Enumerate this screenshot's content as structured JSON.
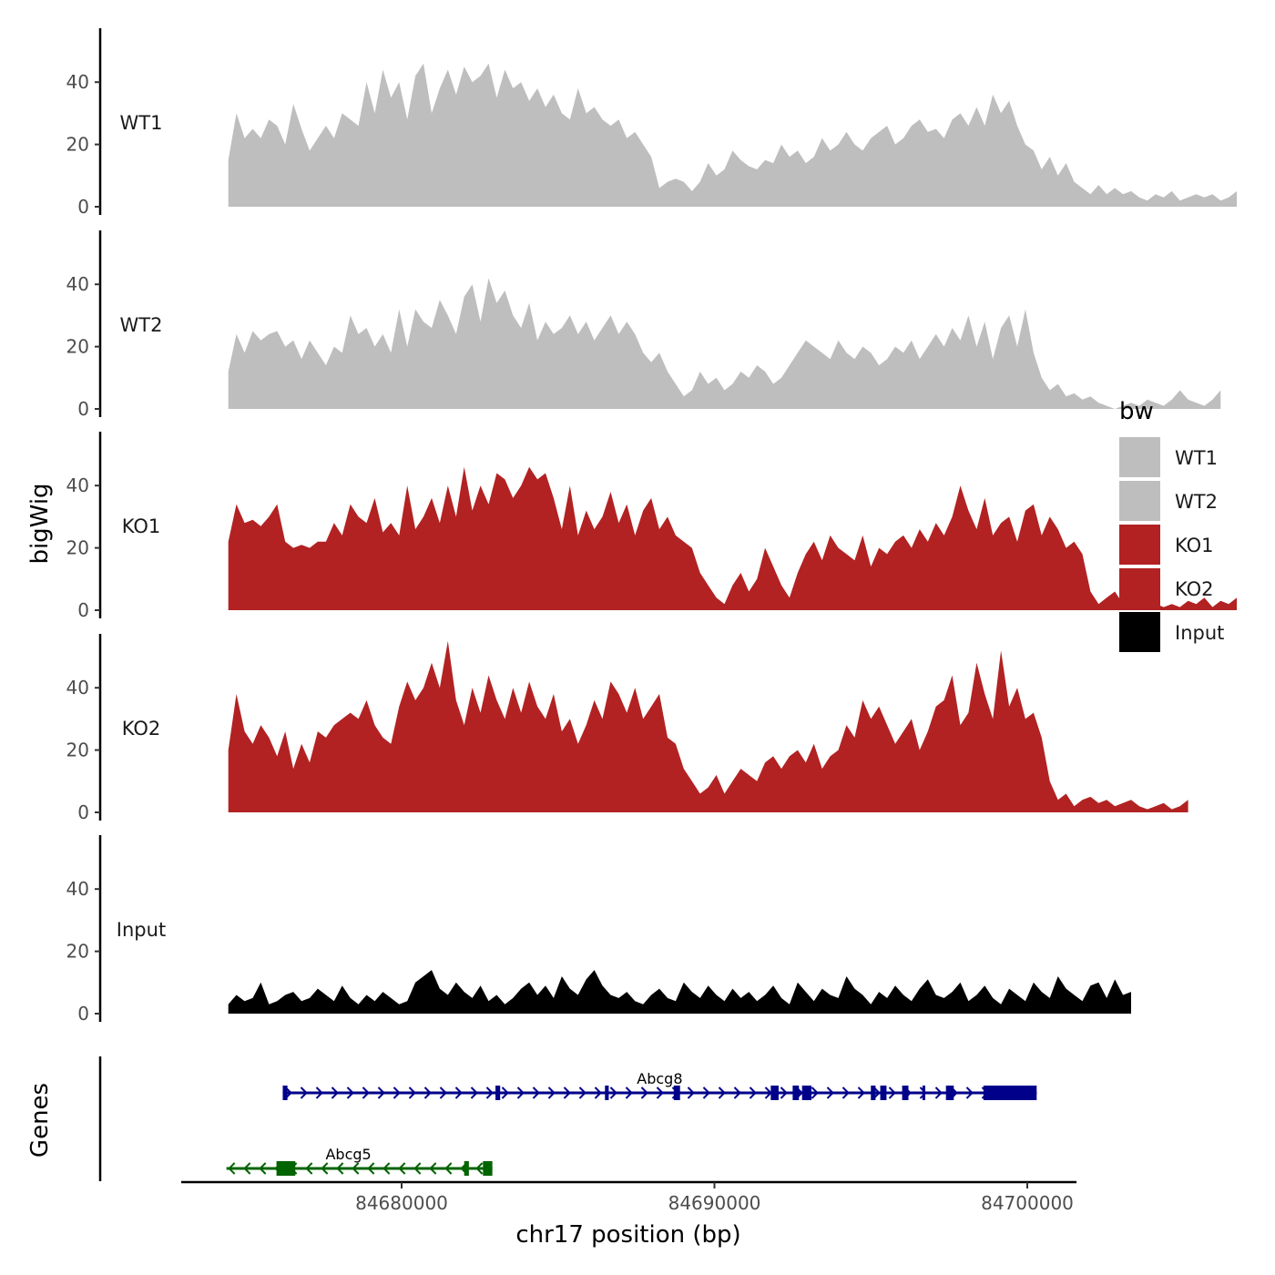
{
  "chart_data": {
    "type": "area",
    "chromosome": "chr17",
    "xlabel": "chr17 position (bp)",
    "ylabel_signal": "bigWig",
    "ylabel_genes": "Genes",
    "xlim": [
      84672600,
      84701600
    ],
    "x_ticks": [
      84680000,
      84690000,
      84700000
    ],
    "x_tick_labels": [
      "84680000",
      "84690000",
      "84700000"
    ],
    "ylim": [
      0,
      57
    ],
    "y_ticks": [
      0,
      20,
      40
    ],
    "y_tick_labels": [
      "0",
      "20",
      "40"
    ],
    "legend": {
      "title": "bw",
      "position": "right",
      "entries": [
        {
          "label": "WT1",
          "color": "#bebebe"
        },
        {
          "label": "WT2",
          "color": "#bebebe"
        },
        {
          "label": "KO1",
          "color": "#b22222"
        },
        {
          "label": "KO2",
          "color": "#b22222"
        },
        {
          "label": "Input",
          "color": "#000000"
        }
      ]
    },
    "series_x_start": 84674460,
    "series_x_step": 260,
    "series": [
      {
        "name": "WT1",
        "color": "#bebebe",
        "values": [
          15,
          30,
          22,
          25,
          22,
          28,
          26,
          20,
          33,
          25,
          18,
          22,
          26,
          22,
          30,
          28,
          26,
          40,
          30,
          44,
          35,
          40,
          28,
          42,
          46,
          30,
          38,
          44,
          36,
          45,
          40,
          42,
          46,
          35,
          44,
          38,
          40,
          34,
          38,
          32,
          36,
          30,
          28,
          38,
          30,
          32,
          28,
          26,
          28,
          22,
          24,
          20,
          16,
          6,
          8,
          9,
          8,
          5,
          8,
          14,
          10,
          12,
          18,
          15,
          13,
          12,
          15,
          14,
          20,
          16,
          18,
          14,
          16,
          22,
          18,
          20,
          24,
          20,
          18,
          22,
          24,
          26,
          20,
          22,
          26,
          28,
          24,
          25,
          22,
          28,
          30,
          26,
          32,
          26,
          36,
          30,
          34,
          26,
          20,
          18,
          12,
          16,
          10,
          14,
          8,
          6,
          4,
          7,
          4,
          6,
          4,
          5,
          3,
          2,
          4,
          3,
          5,
          2,
          3,
          4,
          3,
          4,
          2,
          3,
          5
        ]
      },
      {
        "name": "WT2",
        "color": "#bebebe",
        "values": [
          12,
          24,
          18,
          25,
          22,
          24,
          25,
          20,
          22,
          16,
          22,
          18,
          14,
          20,
          18,
          30,
          24,
          26,
          20,
          24,
          18,
          32,
          20,
          32,
          28,
          26,
          35,
          30,
          24,
          36,
          40,
          28,
          42,
          34,
          38,
          30,
          26,
          34,
          22,
          28,
          24,
          26,
          30,
          24,
          28,
          22,
          26,
          30,
          24,
          28,
          24,
          18,
          15,
          18,
          12,
          8,
          4,
          6,
          12,
          8,
          10,
          6,
          8,
          12,
          10,
          14,
          12,
          8,
          10,
          14,
          18,
          22,
          20,
          18,
          16,
          22,
          18,
          16,
          20,
          18,
          14,
          16,
          20,
          18,
          22,
          16,
          20,
          24,
          20,
          26,
          22,
          30,
          20,
          28,
          16,
          26,
          30,
          20,
          32,
          18,
          10,
          6,
          8,
          4,
          5,
          3,
          4,
          2,
          1,
          0,
          1,
          2,
          1,
          3,
          2,
          1,
          3,
          6,
          3,
          2,
          1,
          3,
          6
        ]
      },
      {
        "name": "KO1",
        "color": "#b22222",
        "values": [
          22,
          34,
          28,
          29,
          27,
          30,
          34,
          22,
          20,
          21,
          20,
          22,
          22,
          28,
          24,
          34,
          30,
          28,
          36,
          25,
          28,
          24,
          40,
          26,
          30,
          36,
          28,
          40,
          30,
          46,
          32,
          40,
          34,
          44,
          42,
          36,
          40,
          46,
          42,
          44,
          36,
          26,
          40,
          24,
          32,
          26,
          30,
          38,
          28,
          34,
          24,
          32,
          36,
          26,
          30,
          24,
          22,
          20,
          12,
          8,
          4,
          2,
          8,
          12,
          6,
          10,
          20,
          14,
          8,
          4,
          12,
          18,
          22,
          16,
          24,
          20,
          18,
          16,
          24,
          14,
          20,
          18,
          22,
          24,
          20,
          26,
          22,
          28,
          24,
          30,
          40,
          32,
          26,
          36,
          24,
          28,
          30,
          22,
          32,
          34,
          24,
          30,
          26,
          20,
          22,
          18,
          6,
          2,
          4,
          6,
          2,
          3,
          1,
          4,
          2,
          1,
          2,
          1,
          3,
          2,
          4,
          1,
          3,
          2,
          4
        ]
      },
      {
        "name": "KO2",
        "color": "#b22222",
        "values": [
          20,
          38,
          26,
          22,
          28,
          24,
          18,
          26,
          14,
          22,
          16,
          26,
          24,
          28,
          30,
          32,
          30,
          36,
          28,
          24,
          22,
          34,
          42,
          36,
          40,
          48,
          40,
          55,
          36,
          28,
          40,
          32,
          44,
          36,
          30,
          40,
          32,
          42,
          34,
          30,
          38,
          26,
          30,
          22,
          28,
          36,
          30,
          42,
          38,
          32,
          40,
          30,
          34,
          38,
          24,
          22,
          14,
          10,
          6,
          8,
          12,
          6,
          10,
          14,
          12,
          10,
          16,
          18,
          14,
          18,
          20,
          16,
          22,
          14,
          18,
          20,
          28,
          24,
          36,
          30,
          34,
          28,
          22,
          26,
          30,
          20,
          26,
          34,
          36,
          44,
          28,
          32,
          48,
          38,
          30,
          52,
          34,
          40,
          30,
          32,
          24,
          10,
          4,
          6,
          2,
          4,
          5,
          3,
          4,
          2,
          3,
          4,
          2,
          1,
          2,
          3,
          1,
          2,
          4
        ]
      },
      {
        "name": "Input",
        "color": "#000000",
        "values": [
          3,
          6,
          4,
          5,
          10,
          3,
          4,
          6,
          7,
          4,
          5,
          8,
          6,
          4,
          9,
          5,
          3,
          6,
          4,
          7,
          5,
          3,
          4,
          10,
          12,
          14,
          8,
          6,
          10,
          7,
          5,
          9,
          4,
          6,
          3,
          5,
          8,
          10,
          6,
          9,
          5,
          12,
          8,
          6,
          11,
          14,
          9,
          6,
          5,
          7,
          4,
          3,
          6,
          8,
          5,
          4,
          10,
          7,
          5,
          9,
          6,
          4,
          8,
          5,
          7,
          4,
          6,
          9,
          5,
          3,
          10,
          7,
          4,
          8,
          6,
          5,
          12,
          8,
          6,
          3,
          7,
          5,
          9,
          6,
          4,
          8,
          11,
          6,
          5,
          7,
          10,
          4,
          6,
          9,
          5,
          3,
          8,
          6,
          4,
          10,
          7,
          5,
          12,
          8,
          6,
          4,
          9,
          10,
          5,
          11,
          6,
          7
        ]
      }
    ],
    "genes": [
      {
        "name": "Abcg8",
        "strand": "+",
        "color": "#00008b",
        "start": 84676200,
        "end": 84700300,
        "exons": [
          [
            84676200,
            84676350
          ],
          [
            84683000,
            84683150
          ],
          [
            84686500,
            84686620
          ],
          [
            84688700,
            84688900
          ],
          [
            84691800,
            84692050
          ],
          [
            84692500,
            84692700
          ],
          [
            84692800,
            84693100
          ],
          [
            84695000,
            84695150
          ],
          [
            84695300,
            84695500
          ],
          [
            84696000,
            84696200
          ],
          [
            84696650,
            84696700
          ],
          [
            84697400,
            84697650
          ],
          [
            84698600,
            84700300
          ]
        ]
      },
      {
        "name": "Abcg5",
        "strand": "-",
        "color": "#006400",
        "start": 84674400,
        "end": 84682900,
        "exons": [
          [
            84676000,
            84676600
          ],
          [
            84682000,
            84682150
          ],
          [
            84682600,
            84682900
          ]
        ]
      }
    ]
  }
}
